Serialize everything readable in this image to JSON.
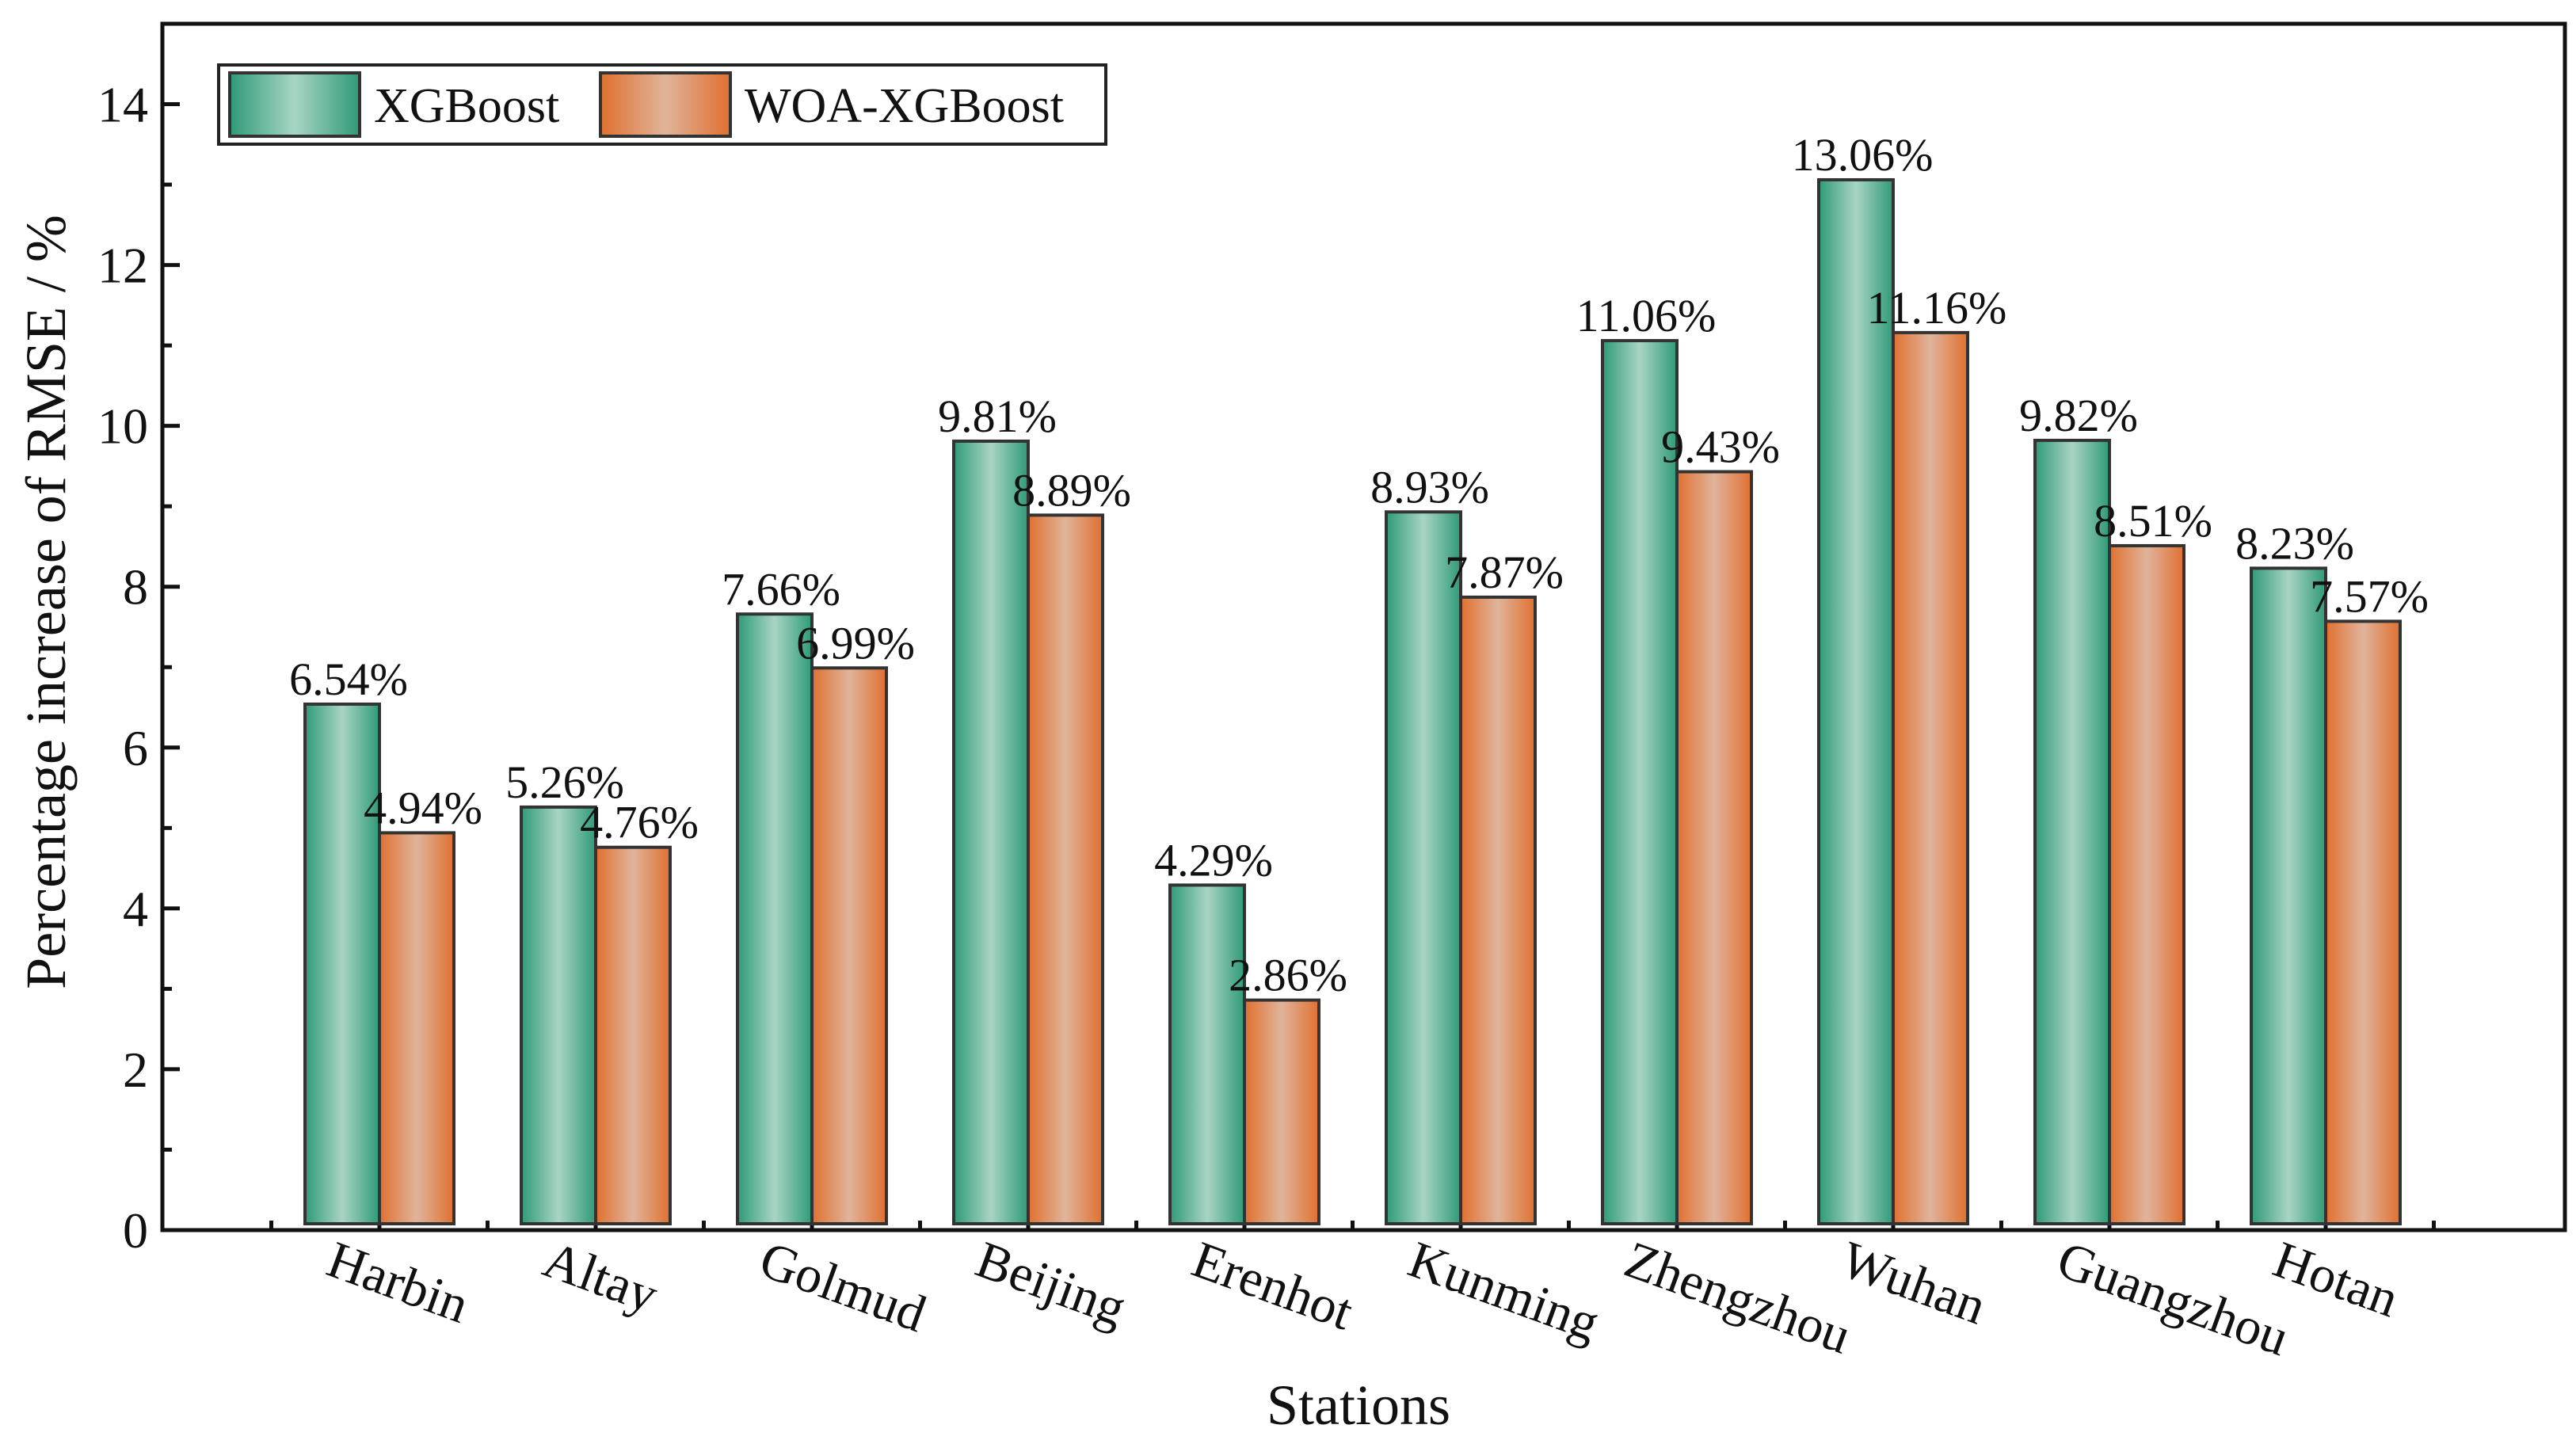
{
  "chart_data": {
    "type": "bar",
    "title": "",
    "xlabel": "Stations",
    "ylabel": "Percentage increase of RMSE / %",
    "ylim": [
      0,
      15
    ],
    "yticks": [
      0,
      2,
      4,
      6,
      8,
      10,
      12,
      14
    ],
    "grid": false,
    "legend_position": "top-left",
    "categories": [
      "Harbin",
      "Altay",
      "Golmud",
      "Beijing",
      "Erenhot",
      "Kunming",
      "Zhengzhou",
      "Wuhan",
      "Guangzhou",
      "Hotan"
    ],
    "series": [
      {
        "name": "XGBoost",
        "color": "#3aa381",
        "values": [
          6.54,
          5.26,
          7.66,
          9.81,
          4.29,
          8.93,
          11.06,
          13.06,
          9.82,
          8.23
        ],
        "labels": [
          "6.54%",
          "5.26%",
          "7.66%",
          "9.81%",
          "4.29%",
          "8.93%",
          "11.06%",
          "13.06%",
          "9.82%",
          "8.23%"
        ]
      },
      {
        "name": "WOA-XGBoost",
        "color": "#e07a3a",
        "values": [
          4.94,
          4.76,
          6.99,
          8.89,
          2.86,
          7.87,
          9.43,
          11.16,
          8.51,
          7.57
        ],
        "labels": [
          "4.94%",
          "4.76%",
          "6.99%",
          "8.89%",
          "2.86%",
          "7.87%",
          "9.43%",
          "11.16%",
          "8.51%",
          "7.57%"
        ]
      }
    ]
  }
}
